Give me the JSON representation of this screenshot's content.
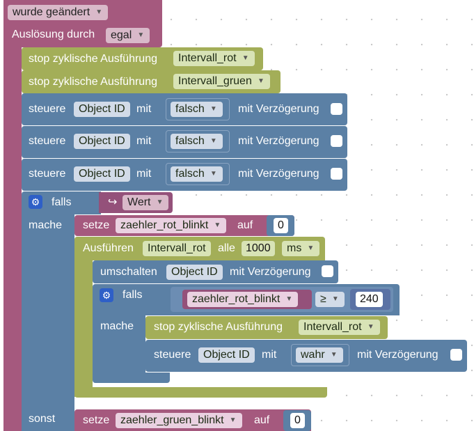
{
  "trigger": {
    "event_dropdown": "wurde geändert",
    "trigger_label": "Auslösung durch",
    "trigger_dropdown": "egal"
  },
  "stop_rows": [
    {
      "label": "stop zyklische Ausführung",
      "interval": "Intervall_rot"
    },
    {
      "label": "stop zyklische Ausführung",
      "interval": "Intervall_gruen"
    }
  ],
  "control_rows": [
    {
      "label": "steuere",
      "object": "Object ID",
      "with": "mit",
      "value": "falsch",
      "delay": "mit Verzögerung"
    },
    {
      "label": "steuere",
      "object": "Object ID",
      "with": "mit",
      "value": "falsch",
      "delay": "mit Verzögerung"
    },
    {
      "label": "steuere",
      "object": "Object ID",
      "with": "mit",
      "value": "falsch",
      "delay": "mit Verzögerung"
    }
  ],
  "if_block": {
    "if_label": "falls",
    "then_label": "mache",
    "else_label": "sonst",
    "condition_arrow": "↪",
    "condition_value": "Wert"
  },
  "set_rot": {
    "label": "setze",
    "variable": "zaehler_rot_blinkt",
    "to": "auf",
    "value": "0"
  },
  "execute": {
    "label": "Ausführen",
    "interval": "Intervall_rot",
    "every": "alle",
    "time": "1000",
    "unit": "ms"
  },
  "toggle": {
    "label": "umschalten",
    "object": "Object ID",
    "delay": "mit Verzögerung"
  },
  "inner_if": {
    "if_label": "falls",
    "then_label": "mache",
    "variable": "zaehler_rot_blinkt",
    "operator": "≥",
    "compare_value": "240"
  },
  "inner_stop": {
    "label": "stop zyklische Ausführung",
    "interval": "Intervall_rot"
  },
  "inner_control": {
    "label": "steuere",
    "object": "Object ID",
    "with": "mit",
    "value": "wahr",
    "delay": "mit Verzögerung"
  },
  "set_gruen": {
    "label": "setze",
    "variable": "zaehler_gruen_blinkt",
    "to": "auf",
    "value": "0"
  },
  "colors": {
    "event_block": "#a5597e",
    "timer_block": "#a3ae58",
    "control_block": "#5b80a5",
    "variable_block": "#a5597e",
    "gear_button": "#2e5fc7"
  }
}
